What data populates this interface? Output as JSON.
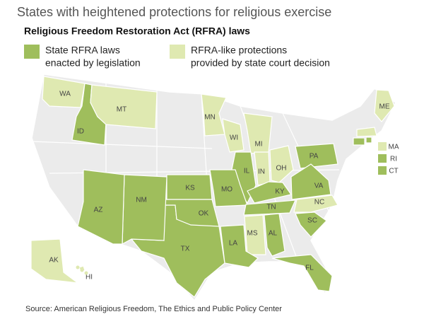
{
  "title": "States with heightened protections for religious exercise",
  "subtitle": "Religious Freedom Restoration Act (RFRA) laws",
  "legend": [
    {
      "lines": [
        "State RFRA laws",
        "enacted by legislation"
      ],
      "color": "#9fbe5c"
    },
    {
      "lines": [
        "RFRA-like protections",
        "provided by state court decision"
      ],
      "color": "#dfe9b1"
    }
  ],
  "other_color": "#ebebeb",
  "states": [
    {
      "label": "WA",
      "group": 1
    },
    {
      "label": "ID",
      "group": 0
    },
    {
      "label": "MT",
      "group": 1
    },
    {
      "label": "MN",
      "group": 1
    },
    {
      "label": "WI",
      "group": 1
    },
    {
      "label": "MI",
      "group": 1
    },
    {
      "label": "IL",
      "group": 0
    },
    {
      "label": "IN",
      "group": 1
    },
    {
      "label": "OH",
      "group": 1
    },
    {
      "label": "PA",
      "group": 0
    },
    {
      "label": "KS",
      "group": 0
    },
    {
      "label": "MO",
      "group": 0
    },
    {
      "label": "KY",
      "group": 0
    },
    {
      "label": "VA",
      "group": 0
    },
    {
      "label": "TN",
      "group": 0
    },
    {
      "label": "NC",
      "group": 1
    },
    {
      "label": "SC",
      "group": 0
    },
    {
      "label": "AL",
      "group": 0
    },
    {
      "label": "MS",
      "group": 1
    },
    {
      "label": "LA",
      "group": 0
    },
    {
      "label": "TX",
      "group": 0
    },
    {
      "label": "OK",
      "group": 0
    },
    {
      "label": "NM",
      "group": 0
    },
    {
      "label": "AZ",
      "group": 0
    },
    {
      "label": "FL",
      "group": 0
    },
    {
      "label": "ME",
      "group": 1
    },
    {
      "label": "MA",
      "group": 1
    },
    {
      "label": "RI",
      "group": 0
    },
    {
      "label": "CT",
      "group": 0
    },
    {
      "label": "AK",
      "group": 1
    },
    {
      "label": "HI",
      "group": 1
    }
  ],
  "source": "Source: American Religious Freedom, The Ethics and Public Policy Center"
}
